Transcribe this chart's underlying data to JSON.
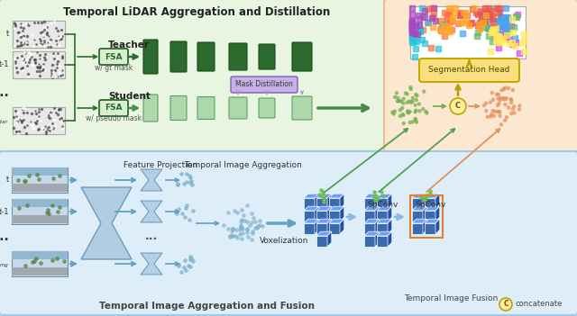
{
  "title_lidar": "Temporal LiDAR Aggregation and Distillation",
  "title_image_fusion": "Temporal Image Aggregation and Fusion",
  "title_img_agg": "Temporal Image Aggregation",
  "title_temp_fusion": "Temporal Image Fusion",
  "label_teacher": "Teacher",
  "label_student": "Student",
  "label_fsa": "FSA",
  "label_gt": "w/ gt mask",
  "label_pseudo": "w/ pseudo mask",
  "label_mask_distill": "Mask Distillation",
  "label_seg_head": "Segmentation Head",
  "label_feature_proj": "Feature Projection",
  "label_voxelization": "Voxelization",
  "label_spconv1": "SpConv",
  "label_spconv2": "SpConv",
  "label_concat": "concatenate",
  "lidar_bg": "#e8f5e0",
  "lidar_border": "#a8d090",
  "image_bg": "#deeef8",
  "image_border": "#a0c8e8",
  "right_bg": "#fce8d0",
  "right_border": "#e8c090",
  "dark_green": "#2d6a2d",
  "med_green": "#4a8a4a",
  "light_green": "#90c890",
  "light_green2": "#acd8ac",
  "purple_box": "#c8b0e8",
  "purple_arrow": "#a090c8",
  "blue_cube": "#3a6ab0",
  "blue_cube_top": "#5a8ad0",
  "blue_cube_right": "#2a4a80",
  "blue_light": "#88b8e8",
  "orange_dots": "#e09060",
  "green_dots": "#70b050",
  "seg_head_bg": "#f8e080",
  "seg_head_border": "#c8a800",
  "arrow_green_dark": "#50a050",
  "arrow_blue": "#60a0c0",
  "concat_bg": "#f8f0a0",
  "concat_border": "#c0a000",
  "hourglass_color": "#a8c8e0",
  "hourglass_border": "#6090b8"
}
